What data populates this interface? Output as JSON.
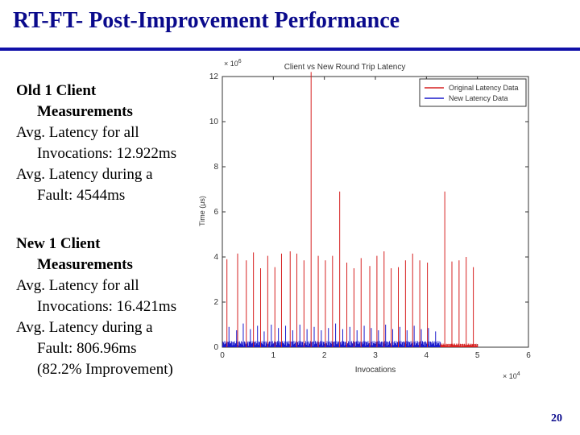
{
  "slide": {
    "title": "RT-FT- Post-Improvement Performance",
    "page_number": "20",
    "title_color": "#0a0a8c",
    "rule_color": "#1010a8"
  },
  "bullets": [
    {
      "heading": [
        "Old 1 Client",
        "Measurements"
      ],
      "lines": [
        [
          "Avg. Latency for all",
          "Invocations: 12.922ms"
        ],
        [
          "Avg. Latency during a",
          "Fault: 4544ms"
        ]
      ]
    },
    {
      "heading": [
        "New 1 Client",
        "Measurements"
      ],
      "lines": [
        [
          "Avg. Latency for all",
          "Invocations: 16.421ms"
        ],
        [
          "Avg. Latency during a",
          "Fault: 806.96ms",
          "(82.2% Improvement)"
        ]
      ]
    }
  ],
  "chart_data": {
    "type": "line",
    "title": "Client vs New Round Trip Latency",
    "xlabel": "Invocations",
    "ylabel": "Time (μs)",
    "x_exponent": "× 10",
    "x_exponent_power": "4",
    "y_exponent": "× 10",
    "y_exponent_power": "6",
    "xlim": [
      0,
      6
    ],
    "ylim": [
      0,
      12
    ],
    "xticks": [
      "0",
      "1",
      "2",
      "3",
      "4",
      "5",
      "6"
    ],
    "yticks": [
      "0",
      "2",
      "4",
      "6",
      "8",
      "10",
      "12"
    ],
    "grid": false,
    "legend_position": "top-right",
    "series": [
      {
        "name": "Original Latency Data",
        "color": "#d62020",
        "x": [
          0.09,
          0.3,
          0.47,
          0.61,
          0.75,
          0.89,
          1.03,
          1.16,
          1.33,
          1.46,
          1.6,
          1.74,
          1.88,
          2.02,
          2.16,
          2.3,
          2.44,
          2.58,
          2.72,
          2.89,
          3.03,
          3.17,
          3.31,
          3.45,
          3.59,
          3.73,
          3.87,
          4.02,
          4.36,
          4.5,
          4.64,
          4.78,
          4.92
        ],
        "values": [
          3.9,
          4.15,
          3.85,
          4.2,
          3.5,
          4.05,
          3.55,
          4.15,
          4.25,
          4.15,
          3.85,
          12.2,
          4.05,
          3.85,
          4.05,
          6.9,
          3.75,
          3.5,
          3.95,
          3.6,
          4.05,
          4.25,
          3.5,
          3.55,
          3.85,
          4.15,
          3.85,
          3.75,
          6.9,
          3.8,
          3.85,
          4.0,
          3.55
        ]
      },
      {
        "name": "New Latency Data",
        "color": "#1a1acc",
        "x": [
          0.13,
          0.28,
          0.41,
          0.55,
          0.69,
          0.82,
          0.96,
          1.1,
          1.24,
          1.38,
          1.52,
          1.66,
          1.8,
          1.94,
          2.08,
          2.22,
          2.36,
          2.5,
          2.64,
          2.78,
          2.92,
          3.06,
          3.2,
          3.34,
          3.48,
          3.62,
          3.76,
          3.9,
          4.04,
          4.18
        ],
        "values": [
          0.9,
          0.75,
          1.05,
          0.8,
          0.95,
          0.7,
          1.0,
          0.85,
          0.95,
          0.75,
          1.0,
          0.8,
          0.9,
          0.75,
          0.85,
          1.05,
          0.8,
          0.9,
          0.75,
          0.95,
          0.85,
          0.75,
          1.0,
          0.8,
          0.9,
          0.75,
          0.95,
          0.8,
          0.85,
          0.7
        ]
      }
    ],
    "baseline": {
      "blue_end_x": 4.28,
      "red_start_x": 4.28,
      "red_end_x": 5.0
    }
  }
}
